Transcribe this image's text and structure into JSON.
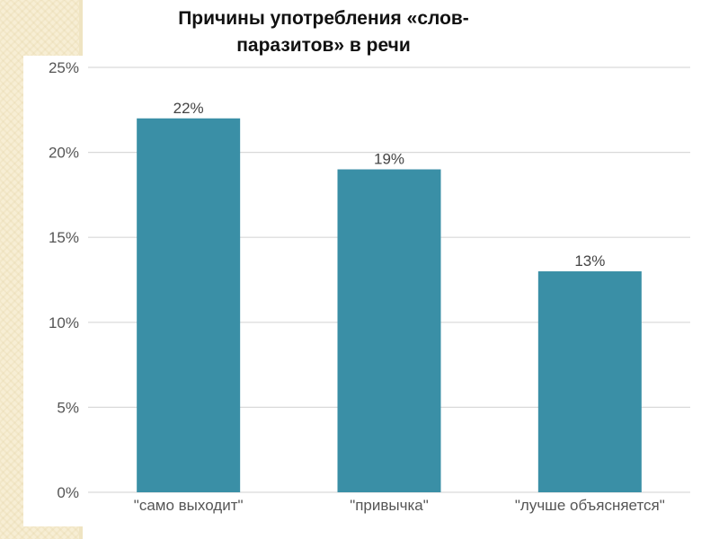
{
  "title": {
    "line1": "Причины употребления «слов-",
    "line2": "паразитов» в речи"
  },
  "colors": {
    "bar": "#3a8fa6",
    "grid": "#d9d9d9",
    "text": "#555555",
    "background_texture": "#f7eed4"
  },
  "chart_data": {
    "type": "bar",
    "title": "Причины употребления «слов-паразитов» в речи",
    "categories": [
      "\"само выходит\"",
      "\"привычка\"",
      "\"лучше объясняется\""
    ],
    "values": [
      22,
      19,
      13
    ],
    "data_labels": [
      "22%",
      "19%",
      "13%"
    ],
    "y_ticks": [
      0,
      5,
      10,
      15,
      20,
      25
    ],
    "y_tick_labels": [
      "0%",
      "5%",
      "10%",
      "15%",
      "20%",
      "25%"
    ],
    "ylim": [
      0,
      25
    ],
    "unit": "%",
    "grid": true,
    "legend": false
  }
}
